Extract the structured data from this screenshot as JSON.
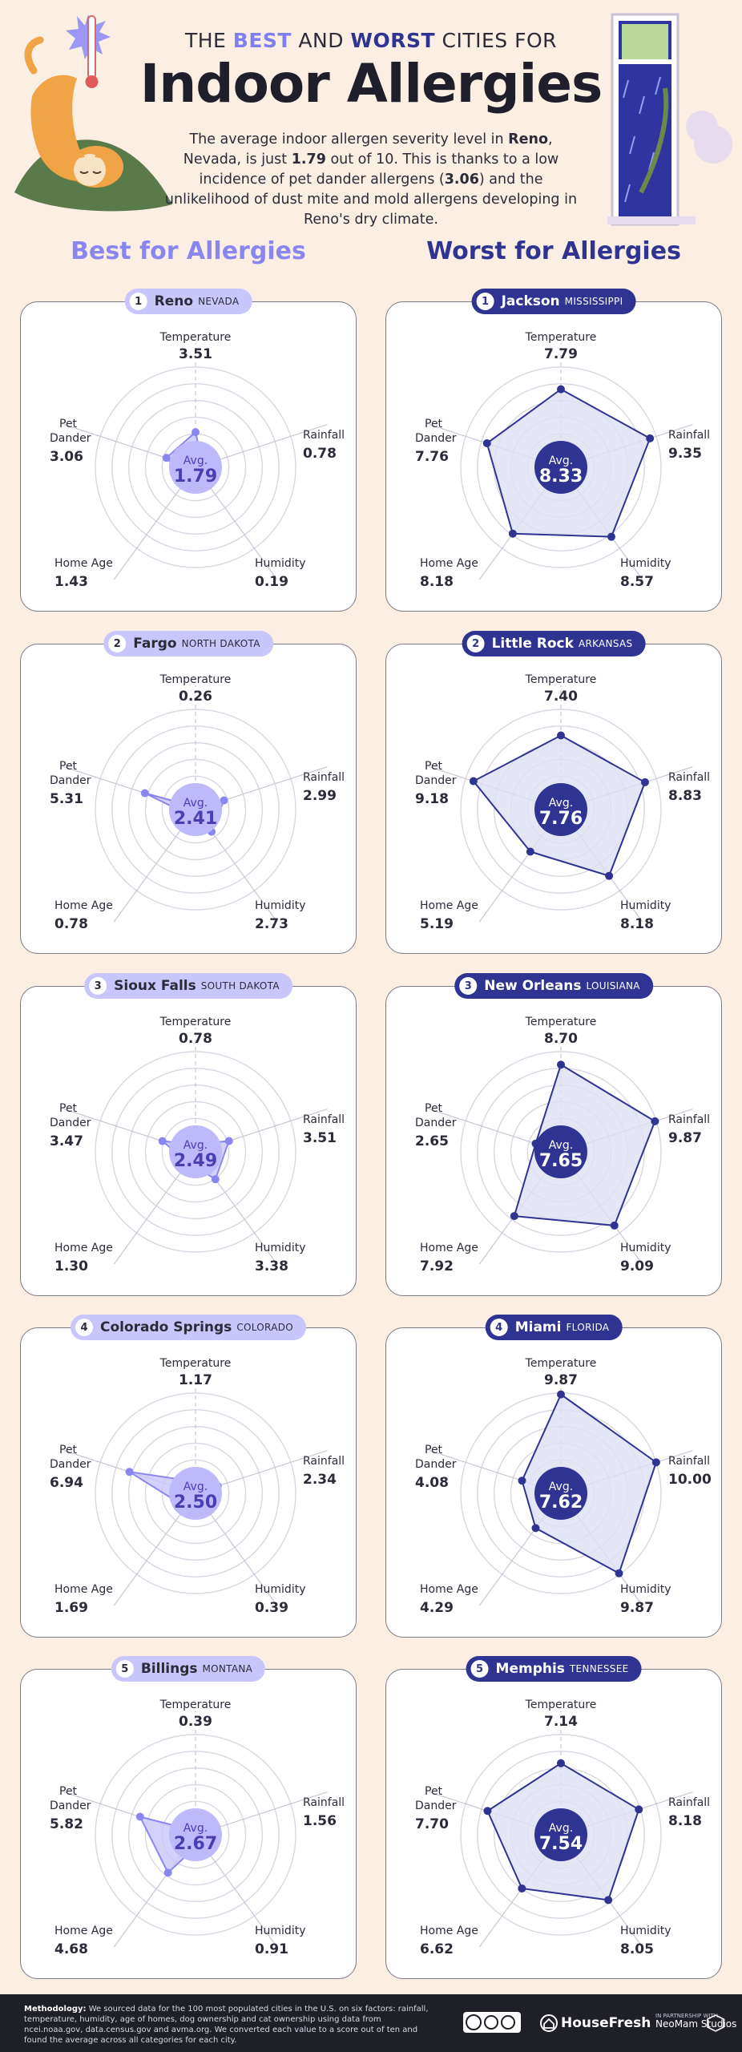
{
  "header": {
    "kicker_pre": "THE ",
    "kicker_best": "BEST",
    "kicker_mid": " AND ",
    "kicker_worst": "WORST",
    "kicker_post": " CITIES FOR",
    "title": "Indoor Allergies",
    "intro_1": "The average indoor allergen severity level in ",
    "intro_city": "Reno",
    "intro_2": ", Nevada, is just ",
    "intro_score": "1.79",
    "intro_3": " out of 10. This is thanks to a low incidence of pet dander allergens (",
    "intro_dander": "3.06",
    "intro_4": ") and the unlikelihood of dust mite and mold allergens developing in Reno's dry climate."
  },
  "columns": {
    "best": "Best for Allergies",
    "worst": "Worst for Allergies"
  },
  "colors": {
    "best_fill": "#c9c6fb",
    "best_stroke": "#8a86f0",
    "best_avg": "#bdb9fa",
    "worst_fill": "#dde0f4",
    "worst_stroke": "#2f3391",
    "worst_avg": "#2f3391"
  },
  "chart_data": [
    {
      "type": "radar",
      "group": "best",
      "rank": "1",
      "city": "Reno",
      "state": "NEVADA",
      "avg_label": "Avg.",
      "avg": "1.79",
      "axes": [
        "Temperature",
        "Rainfall",
        "Humidity",
        "Home Age",
        "Pet Dander"
      ],
      "values": [
        3.51,
        0.78,
        0.19,
        1.43,
        3.06
      ],
      "value_labels": [
        "3.51",
        "0.78",
        "0.19",
        "1.43",
        "3.06"
      ],
      "rlim": [
        0,
        10
      ]
    },
    {
      "type": "radar",
      "group": "best",
      "rank": "2",
      "city": "Fargo",
      "state": "NORTH DAKOTA",
      "avg_label": "Avg.",
      "avg": "2.41",
      "axes": [
        "Temperature",
        "Rainfall",
        "Humidity",
        "Home Age",
        "Pet Dander"
      ],
      "values": [
        0.26,
        2.99,
        2.73,
        0.78,
        5.31
      ],
      "value_labels": [
        "0.26",
        "2.99",
        "2.73",
        "0.78",
        "5.31"
      ],
      "rlim": [
        0,
        10
      ]
    },
    {
      "type": "radar",
      "group": "best",
      "rank": "3",
      "city": "Sioux Falls",
      "state": "SOUTH DAKOTA",
      "avg_label": "Avg.",
      "avg": "2.49",
      "axes": [
        "Temperature",
        "Rainfall",
        "Humidity",
        "Home Age",
        "Pet Dander"
      ],
      "values": [
        0.78,
        3.51,
        3.38,
        1.3,
        3.47
      ],
      "value_labels": [
        "0.78",
        "3.51",
        "3.38",
        "1.30",
        "3.47"
      ],
      "rlim": [
        0,
        10
      ]
    },
    {
      "type": "radar",
      "group": "best",
      "rank": "4",
      "city": "Colorado Springs",
      "state": "COLORADO",
      "avg_label": "Avg.",
      "avg": "2.50",
      "axes": [
        "Temperature",
        "Rainfall",
        "Humidity",
        "Home Age",
        "Pet Dander"
      ],
      "values": [
        1.17,
        2.34,
        0.39,
        1.69,
        6.94
      ],
      "value_labels": [
        "1.17",
        "2.34",
        "0.39",
        "1.69",
        "6.94"
      ],
      "rlim": [
        0,
        10
      ]
    },
    {
      "type": "radar",
      "group": "best",
      "rank": "5",
      "city": "Billings",
      "state": "MONTANA",
      "avg_label": "Avg.",
      "avg": "2.67",
      "axes": [
        "Temperature",
        "Rainfall",
        "Humidity",
        "Home Age",
        "Pet Dander"
      ],
      "values": [
        0.39,
        1.56,
        0.91,
        4.68,
        5.82
      ],
      "value_labels": [
        "0.39",
        "1.56",
        "0.91",
        "4.68",
        "5.82"
      ],
      "rlim": [
        0,
        10
      ]
    },
    {
      "type": "radar",
      "group": "worst",
      "rank": "1",
      "city": "Jackson",
      "state": "MISSISSIPPI",
      "avg_label": "Avg.",
      "avg": "8.33",
      "axes": [
        "Temperature",
        "Rainfall",
        "Humidity",
        "Home Age",
        "Pet Dander"
      ],
      "values": [
        7.79,
        9.35,
        8.57,
        8.18,
        7.76
      ],
      "value_labels": [
        "7.79",
        "9.35",
        "8.57",
        "8.18",
        "7.76"
      ],
      "rlim": [
        0,
        10
      ]
    },
    {
      "type": "radar",
      "group": "worst",
      "rank": "2",
      "city": "Little Rock",
      "state": "ARKANSAS",
      "avg_label": "Avg.",
      "avg": "7.76",
      "axes": [
        "Temperature",
        "Rainfall",
        "Humidity",
        "Home Age",
        "Pet Dander"
      ],
      "values": [
        7.4,
        8.83,
        8.18,
        5.19,
        9.18
      ],
      "value_labels": [
        "7.40",
        "8.83",
        "8.18",
        "5.19",
        "9.18"
      ],
      "rlim": [
        0,
        10
      ]
    },
    {
      "type": "radar",
      "group": "worst",
      "rank": "3",
      "city": "New Orleans",
      "state": "LOUISIANA",
      "avg_label": "Avg.",
      "avg": "7.65",
      "axes": [
        "Temperature",
        "Rainfall",
        "Humidity",
        "Home Age",
        "Pet Dander"
      ],
      "values": [
        8.7,
        9.87,
        9.09,
        7.92,
        2.65
      ],
      "value_labels": [
        "8.70",
        "9.87",
        "9.09",
        "7.92",
        "2.65"
      ],
      "rlim": [
        0,
        10
      ]
    },
    {
      "type": "radar",
      "group": "worst",
      "rank": "4",
      "city": "Miami",
      "state": "FLORIDA",
      "avg_label": "Avg.",
      "avg": "7.62",
      "axes": [
        "Temperature",
        "Rainfall",
        "Humidity",
        "Home Age",
        "Pet Dander"
      ],
      "values": [
        9.87,
        10.0,
        9.87,
        4.29,
        4.08
      ],
      "value_labels": [
        "9.87",
        "10.00",
        "9.87",
        "4.29",
        "4.08"
      ],
      "rlim": [
        0,
        10
      ]
    },
    {
      "type": "radar",
      "group": "worst",
      "rank": "5",
      "city": "Memphis",
      "state": "TENNESSEE",
      "avg_label": "Avg.",
      "avg": "7.54",
      "axes": [
        "Temperature",
        "Rainfall",
        "Humidity",
        "Home Age",
        "Pet Dander"
      ],
      "values": [
        7.14,
        8.18,
        8.05,
        6.62,
        7.7
      ],
      "value_labels": [
        "7.14",
        "8.18",
        "8.05",
        "6.62",
        "7.70"
      ],
      "rlim": [
        0,
        10
      ]
    }
  ],
  "footer": {
    "methodology_label": "Methodology:",
    "methodology_text": " We sourced data for the 100 most populated cities in the U.S. on six factors: rainfall, temperature, humidity, age of homes, dog ownership and cat ownership using data from ncei.noaa.gov, data.census.gov and avma.org. We converted each value to a score out of ten and found the average across all categories for each city.",
    "brand": "HouseFresh",
    "partner_line": "IN PARTNERSHIP WITH",
    "partner": "NeoMam Studios"
  }
}
